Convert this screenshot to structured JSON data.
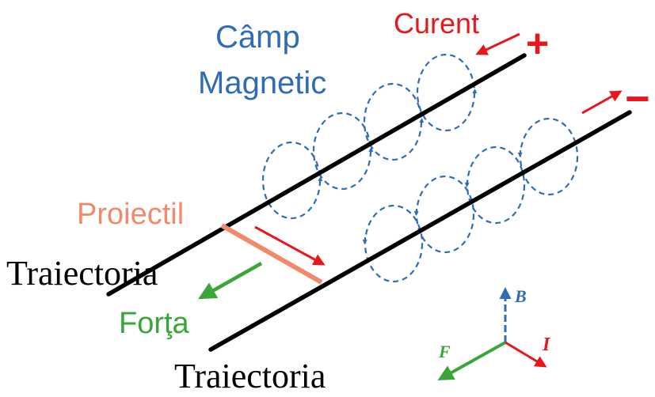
{
  "labels": {
    "field_line1": "Câmp",
    "field_line2": "Magnetic",
    "current": "Curent",
    "plus": "+",
    "minus": "−",
    "projectile": "Proiectil",
    "trajectory_upper": "Traiectoria",
    "force": "Forţa",
    "trajectory_lower": "Traiectoria",
    "axis_b": "B",
    "axis_f": "F",
    "axis_i": "I"
  },
  "colors": {
    "rail": "#000000",
    "field": "#2e6db6",
    "current": "#e8171b",
    "projectile": "#f08a6a",
    "force": "#3aa63a",
    "b_axis": "#2e6db6"
  }
}
